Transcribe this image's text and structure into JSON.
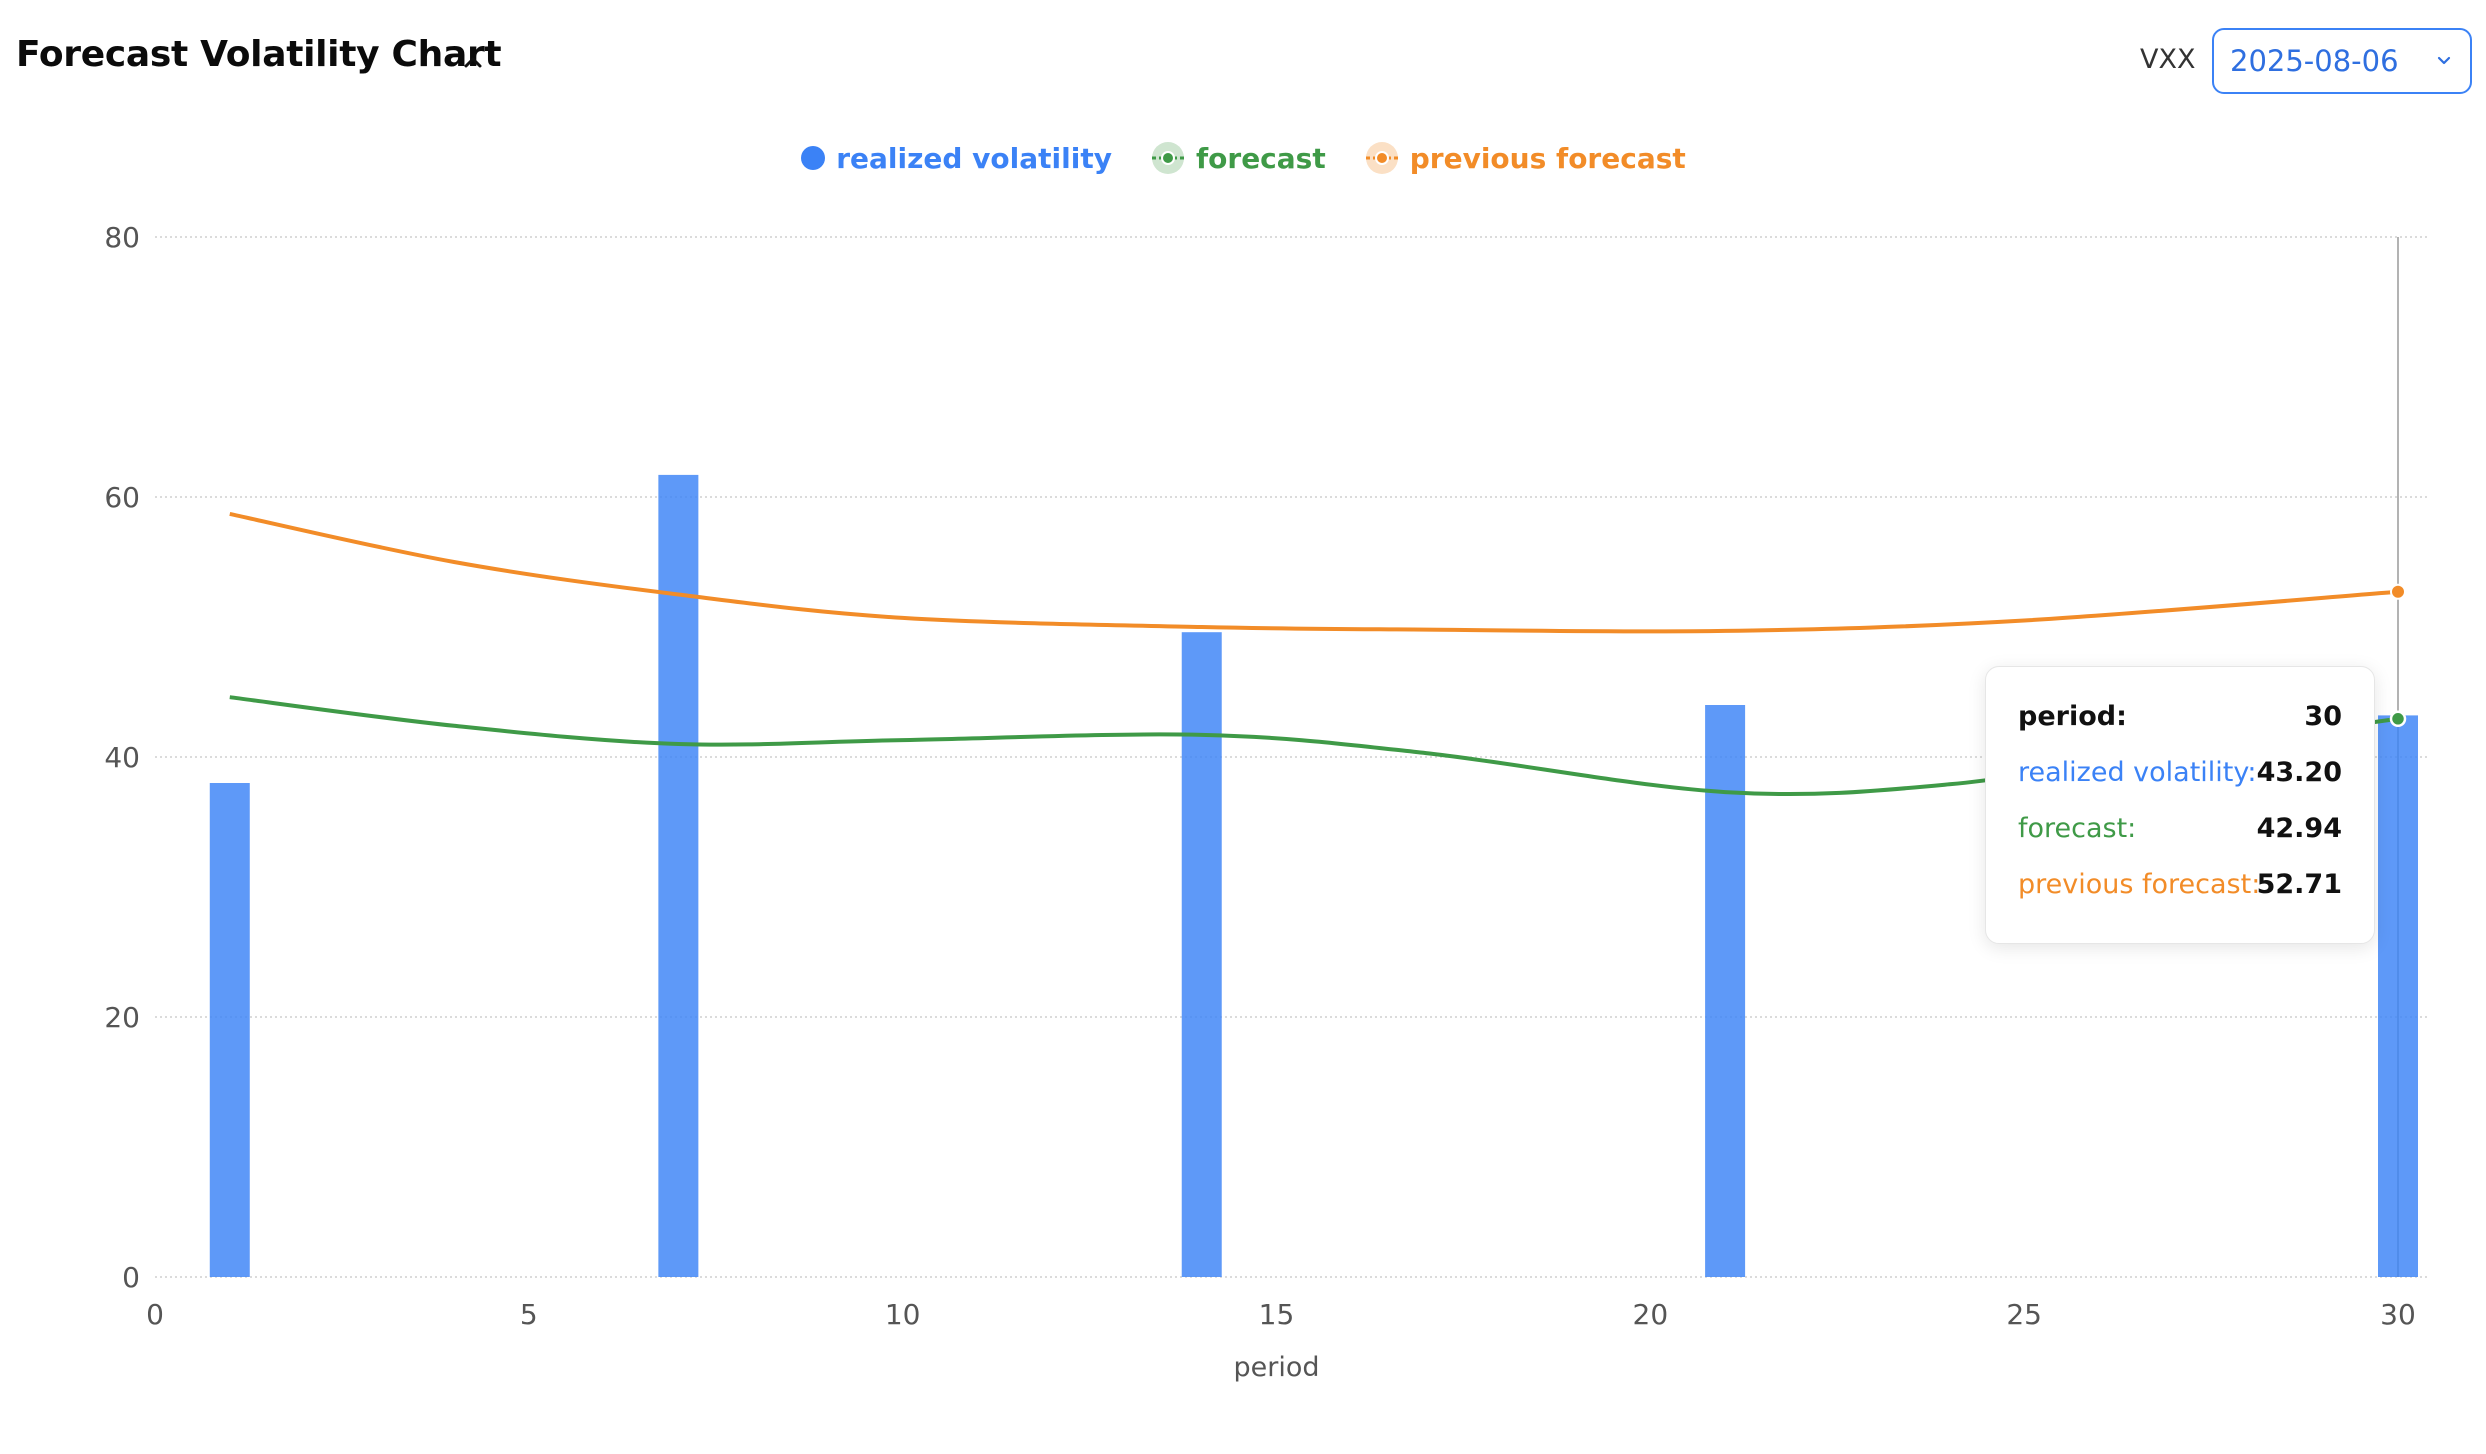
{
  "header": {
    "title": "Forecast Volatility Chart",
    "ticker": "VXX",
    "date_value": "2025-08-06"
  },
  "icons": {
    "collapse": "chevron-up-icon",
    "dropdown": "chevron-down-icon"
  },
  "colors": {
    "realized": "#3b82f6",
    "forecast": "#3f9a47",
    "previous": "#f28c28",
    "grid": "#cfcfcf",
    "axis_text": "#555555"
  },
  "chart_data": {
    "type": "bar+line",
    "xlabel": "period",
    "ylabel": "",
    "xlim": [
      0,
      30
    ],
    "ylim": [
      0,
      80
    ],
    "x_ticks": [
      0,
      5,
      10,
      15,
      20,
      25,
      30
    ],
    "y_ticks": [
      0,
      20,
      40,
      60,
      80
    ],
    "grid": "horizontal dotted",
    "legend_position": "top-center",
    "series": [
      {
        "name": "realized volatility",
        "type": "bar",
        "points": [
          [
            1,
            38.0
          ],
          [
            7,
            61.7
          ],
          [
            14,
            49.6
          ],
          [
            21,
            44.0
          ],
          [
            30,
            43.2
          ]
        ]
      },
      {
        "name": "forecast",
        "type": "line",
        "points": [
          [
            1,
            44.6
          ],
          [
            4,
            42.4
          ],
          [
            7,
            41.0
          ],
          [
            10,
            41.3
          ],
          [
            14,
            41.7
          ],
          [
            17,
            40.3
          ],
          [
            21,
            37.3
          ],
          [
            24,
            37.9
          ],
          [
            27,
            40.5
          ],
          [
            30,
            42.94
          ]
        ]
      },
      {
        "name": "previous forecast",
        "type": "line",
        "points": [
          [
            1,
            58.7
          ],
          [
            4,
            55.0
          ],
          [
            7,
            52.5
          ],
          [
            10,
            50.7
          ],
          [
            14,
            50.0
          ],
          [
            17,
            49.8
          ],
          [
            21,
            49.7
          ],
          [
            25,
            50.5
          ],
          [
            30,
            52.71
          ]
        ]
      }
    ],
    "tooltip": {
      "x": 30,
      "rows": [
        {
          "label": "period:",
          "value": "30"
        },
        {
          "label": "realized volatility:",
          "value": "43.20"
        },
        {
          "label": "forecast:",
          "value": "42.94"
        },
        {
          "label": "previous forecast:",
          "value": "52.71"
        }
      ]
    }
  }
}
